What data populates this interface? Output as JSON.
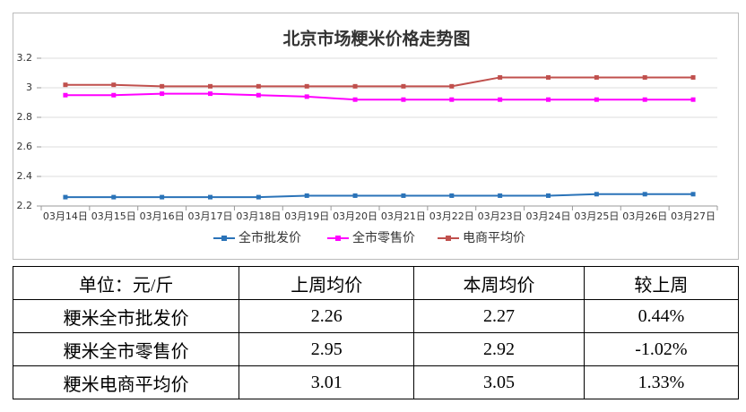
{
  "chart_data": {
    "type": "line",
    "title": "北京市场粳米价格走势图",
    "categories": [
      "03月14日",
      "03月15日",
      "03月16日",
      "03月17日",
      "03月18日",
      "03月19日",
      "03月20日",
      "03月21日",
      "03月22日",
      "03月23日",
      "03月24日",
      "03月25日",
      "03月26日",
      "03月27日"
    ],
    "series": [
      {
        "name": "全市批发价",
        "color": "#2a73b8",
        "values": [
          2.26,
          2.26,
          2.26,
          2.26,
          2.26,
          2.27,
          2.27,
          2.27,
          2.27,
          2.27,
          2.27,
          2.28,
          2.28,
          2.28
        ]
      },
      {
        "name": "全市零售价",
        "color": "#ff00ff",
        "values": [
          2.95,
          2.95,
          2.96,
          2.96,
          2.95,
          2.94,
          2.92,
          2.92,
          2.92,
          2.92,
          2.92,
          2.92,
          2.92,
          2.92
        ]
      },
      {
        "name": "电商平均价",
        "color": "#c0504d",
        "values": [
          3.02,
          3.02,
          3.01,
          3.01,
          3.01,
          3.01,
          3.01,
          3.01,
          3.01,
          3.07,
          3.07,
          3.07,
          3.07,
          3.07
        ]
      }
    ],
    "ylim": [
      2.2,
      3.2
    ],
    "yticks": [
      2.2,
      2.4,
      2.6,
      2.8,
      3,
      3.2
    ],
    "grid": true,
    "legend": "bottom"
  },
  "table": {
    "rows": [
      [
        "单位：元/斤",
        "上周均价",
        "本周均价",
        "较上周"
      ],
      [
        "粳米全市批发价",
        "2.26",
        "2.27",
        "0.44%"
      ],
      [
        "粳米全市零售价",
        "2.95",
        "2.92",
        "-1.02%"
      ],
      [
        "粳米电商平均价",
        "3.01",
        "3.05",
        "1.33%"
      ]
    ]
  }
}
